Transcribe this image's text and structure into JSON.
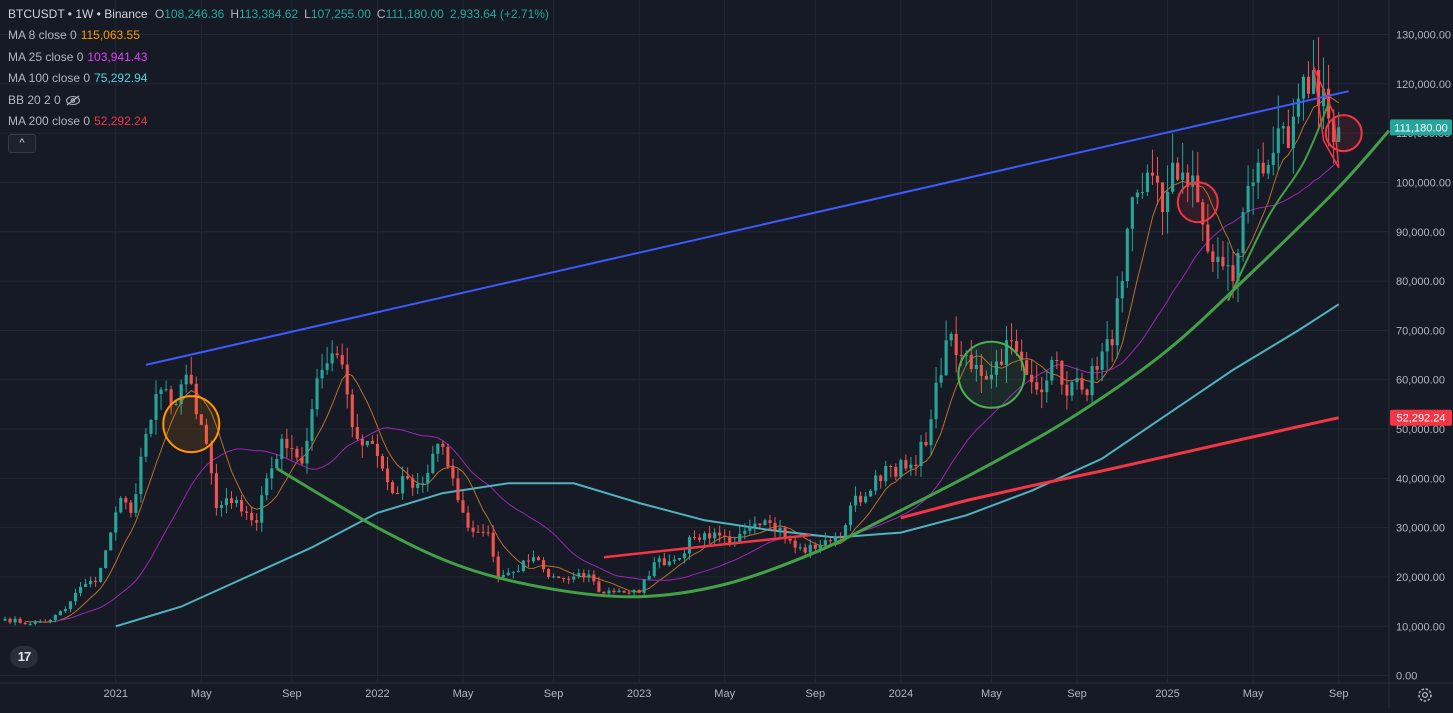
{
  "header": {
    "symbol_line": "BTCUSDT • 1W • Binance",
    "ohlc": [
      {
        "k": "O",
        "v": "108,246.36"
      },
      {
        "k": "H",
        "v": "113,384.62"
      },
      {
        "k": "L",
        "v": "107,255.00"
      },
      {
        "k": "C",
        "v": "111,180.00"
      },
      {
        "k": "",
        "v": "2,933.64 (+2.71%)"
      }
    ]
  },
  "indicators": [
    {
      "label": "MA 8 close 0",
      "value": "115,063.55",
      "color": "#ff9800"
    },
    {
      "label": "MA 25 close 0",
      "value": "103,941.43",
      "color": "#e040fb"
    },
    {
      "label": "MA 100 close 0",
      "value": "75,292.94",
      "color": "#5ad1e0"
    },
    {
      "label": "BB 20 2 0",
      "value": "",
      "color": "#b2b5be"
    },
    {
      "label": "MA 200 close 0",
      "value": "52,292.24",
      "color": "#f23645"
    }
  ],
  "collapse_label": "^",
  "logo_text": "17",
  "colors": {
    "up": "#26a69a",
    "down": "#ef5350",
    "ma8": "#b8702a",
    "ma25": "#9c27b0",
    "ma100": "#4fb3bf",
    "ma200": "#f23645",
    "trend_blue": "#3d5afe",
    "curve_green": "#43a047",
    "orange_circle": "#ff9800",
    "red_circle": "#f23645",
    "green_circle": "#4caf50"
  },
  "chart_data": {
    "type": "candlestick",
    "ylim": [
      -1500,
      137000
    ],
    "xlim": [
      "2020-07-27",
      "2025-11-10"
    ],
    "y_ticks": [
      "0.00",
      "10,000.00",
      "20,000.00",
      "30,000.00",
      "40,000.00",
      "50,000.00",
      "60,000.00",
      "70,000.00",
      "80,000.00",
      "90,000.00",
      "100,000.00",
      "110,000.00",
      "120,000.00",
      "130,000.00"
    ],
    "y_tick_values": [
      0,
      10000,
      20000,
      30000,
      40000,
      50000,
      60000,
      70000,
      80000,
      90000,
      100000,
      110000,
      120000,
      130000
    ],
    "x_ticks": [
      {
        "label": "2021",
        "date": "2021-01-04"
      },
      {
        "label": "May",
        "date": "2021-05-03"
      },
      {
        "label": "Sep",
        "date": "2021-09-06"
      },
      {
        "label": "2022",
        "date": "2022-01-03"
      },
      {
        "label": "May",
        "date": "2022-05-02"
      },
      {
        "label": "Sep",
        "date": "2022-09-05"
      },
      {
        "label": "2023",
        "date": "2023-01-02"
      },
      {
        "label": "May",
        "date": "2023-05-01"
      },
      {
        "label": "Sep",
        "date": "2023-09-04"
      },
      {
        "label": "2024",
        "date": "2024-01-01"
      },
      {
        "label": "May",
        "date": "2024-05-06"
      },
      {
        "label": "Sep",
        "date": "2024-09-02"
      },
      {
        "label": "2025",
        "date": "2025-01-06"
      },
      {
        "label": "May",
        "date": "2025-05-05"
      },
      {
        "label": "Sep",
        "date": "2025-09-01"
      }
    ],
    "price_labels": [
      {
        "text": "111,180.00",
        "value": 111180,
        "color": "#26a69a"
      },
      {
        "text": "52,292.24",
        "value": 52292.24,
        "color": "#f23645"
      }
    ],
    "closes": [
      {
        "d": "2020-08-03",
        "v": 11500
      },
      {
        "d": "2020-09-07",
        "v": 10500
      },
      {
        "d": "2020-10-05",
        "v": 11300
      },
      {
        "d": "2020-10-26",
        "v": 13500
      },
      {
        "d": "2020-11-16",
        "v": 18000
      },
      {
        "d": "2020-12-07",
        "v": 19000
      },
      {
        "d": "2020-12-28",
        "v": 29000
      },
      {
        "d": "2021-01-11",
        "v": 36000
      },
      {
        "d": "2021-01-25",
        "v": 33000
      },
      {
        "d": "2021-02-15",
        "v": 49000
      },
      {
        "d": "2021-03-08",
        "v": 58000
      },
      {
        "d": "2021-03-22",
        "v": 55000
      },
      {
        "d": "2021-04-12",
        "v": 61000
      },
      {
        "d": "2021-04-26",
        "v": 53000
      },
      {
        "d": "2021-05-10",
        "v": 47000
      },
      {
        "d": "2021-05-24",
        "v": 34000
      },
      {
        "d": "2021-06-14",
        "v": 35000
      },
      {
        "d": "2021-07-05",
        "v": 33000
      },
      {
        "d": "2021-07-19",
        "v": 31000
      },
      {
        "d": "2021-08-02",
        "v": 40000
      },
      {
        "d": "2021-08-23",
        "v": 48000
      },
      {
        "d": "2021-09-06",
        "v": 46000
      },
      {
        "d": "2021-09-20",
        "v": 43000
      },
      {
        "d": "2021-10-04",
        "v": 54000
      },
      {
        "d": "2021-10-18",
        "v": 62000
      },
      {
        "d": "2021-11-08",
        "v": 65000
      },
      {
        "d": "2021-11-22",
        "v": 57000
      },
      {
        "d": "2021-12-06",
        "v": 48000
      },
      {
        "d": "2021-12-27",
        "v": 47000
      },
      {
        "d": "2022-01-10",
        "v": 42000
      },
      {
        "d": "2022-01-24",
        "v": 37000
      },
      {
        "d": "2022-02-14",
        "v": 40000
      },
      {
        "d": "2022-03-07",
        "v": 39000
      },
      {
        "d": "2022-03-28",
        "v": 47000
      },
      {
        "d": "2022-04-18",
        "v": 40000
      },
      {
        "d": "2022-05-09",
        "v": 30000
      },
      {
        "d": "2022-06-06",
        "v": 29000
      },
      {
        "d": "2022-06-20",
        "v": 20000
      },
      {
        "d": "2022-07-11",
        "v": 21000
      },
      {
        "d": "2022-08-08",
        "v": 24000
      },
      {
        "d": "2022-08-29",
        "v": 20000
      },
      {
        "d": "2022-09-26",
        "v": 19500
      },
      {
        "d": "2022-10-24",
        "v": 20500
      },
      {
        "d": "2022-11-07",
        "v": 17000
      },
      {
        "d": "2022-12-05",
        "v": 17200
      },
      {
        "d": "2023-01-02",
        "v": 16800
      },
      {
        "d": "2023-01-23",
        "v": 23000
      },
      {
        "d": "2023-02-20",
        "v": 23500
      },
      {
        "d": "2023-03-20",
        "v": 28000
      },
      {
        "d": "2023-04-17",
        "v": 29000
      },
      {
        "d": "2023-05-15",
        "v": 27000
      },
      {
        "d": "2023-06-19",
        "v": 30500
      },
      {
        "d": "2023-07-17",
        "v": 30000
      },
      {
        "d": "2023-08-14",
        "v": 26000
      },
      {
        "d": "2023-09-11",
        "v": 26500
      },
      {
        "d": "2023-10-09",
        "v": 28000
      },
      {
        "d": "2023-10-23",
        "v": 34500
      },
      {
        "d": "2023-11-20",
        "v": 37500
      },
      {
        "d": "2023-12-11",
        "v": 42500
      },
      {
        "d": "2024-01-08",
        "v": 42000
      },
      {
        "d": "2024-01-22",
        "v": 42500
      },
      {
        "d": "2024-02-12",
        "v": 52000
      },
      {
        "d": "2024-03-04",
        "v": 68000
      },
      {
        "d": "2024-03-18",
        "v": 65000
      },
      {
        "d": "2024-04-15",
        "v": 63000
      },
      {
        "d": "2024-05-06",
        "v": 61000
      },
      {
        "d": "2024-05-27",
        "v": 68000
      },
      {
        "d": "2024-06-24",
        "v": 61000
      },
      {
        "d": "2024-07-08",
        "v": 58000
      },
      {
        "d": "2024-07-29",
        "v": 64000
      },
      {
        "d": "2024-08-12",
        "v": 59000
      },
      {
        "d": "2024-09-09",
        "v": 58000
      },
      {
        "d": "2024-09-30",
        "v": 62000
      },
      {
        "d": "2024-10-21",
        "v": 67000
      },
      {
        "d": "2024-11-04",
        "v": 80000
      },
      {
        "d": "2024-11-18",
        "v": 97000
      },
      {
        "d": "2024-12-09",
        "v": 102000
      },
      {
        "d": "2024-12-30",
        "v": 94000
      },
      {
        "d": "2025-01-13",
        "v": 104000
      },
      {
        "d": "2025-01-27",
        "v": 102000
      },
      {
        "d": "2025-02-17",
        "v": 96000
      },
      {
        "d": "2025-03-03",
        "v": 86000
      },
      {
        "d": "2025-03-24",
        "v": 83000
      },
      {
        "d": "2025-04-07",
        "v": 80000
      },
      {
        "d": "2025-04-21",
        "v": 94000
      },
      {
        "d": "2025-05-12",
        "v": 104000
      },
      {
        "d": "2025-06-02",
        "v": 106000
      },
      {
        "d": "2025-06-23",
        "v": 107000
      },
      {
        "d": "2025-07-07",
        "v": 117000
      },
      {
        "d": "2025-07-21",
        "v": 118000
      },
      {
        "d": "2025-08-11",
        "v": 119000
      },
      {
        "d": "2025-08-18",
        "v": 113000
      },
      {
        "d": "2025-08-25",
        "v": 108200
      },
      {
        "d": "2025-09-01",
        "v": 111180
      }
    ],
    "ma100": [
      {
        "d": "2021-01-04",
        "v": 10000
      },
      {
        "d": "2021-04-05",
        "v": 14000
      },
      {
        "d": "2021-07-05",
        "v": 20000
      },
      {
        "d": "2021-10-04",
        "v": 26000
      },
      {
        "d": "2022-01-03",
        "v": 33000
      },
      {
        "d": "2022-04-04",
        "v": 37000
      },
      {
        "d": "2022-07-04",
        "v": 39000
      },
      {
        "d": "2022-10-03",
        "v": 39000
      },
      {
        "d": "2023-01-02",
        "v": 35000
      },
      {
        "d": "2023-04-03",
        "v": 31500
      },
      {
        "d": "2023-07-03",
        "v": 29500
      },
      {
        "d": "2023-10-02",
        "v": 28000
      },
      {
        "d": "2024-01-01",
        "v": 29000
      },
      {
        "d": "2024-04-01",
        "v": 32500
      },
      {
        "d": "2024-07-01",
        "v": 37500
      },
      {
        "d": "2024-10-07",
        "v": 44000
      },
      {
        "d": "2025-01-06",
        "v": 53000
      },
      {
        "d": "2025-04-07",
        "v": 62000
      },
      {
        "d": "2025-07-07",
        "v": 70000
      },
      {
        "d": "2025-09-01",
        "v": 75293
      }
    ],
    "ma200": [
      {
        "d": "2024-01-01",
        "v": 32000
      },
      {
        "d": "2024-04-01",
        "v": 35500
      },
      {
        "d": "2024-07-01",
        "v": 38500
      },
      {
        "d": "2024-10-07",
        "v": 41500
      },
      {
        "d": "2025-01-06",
        "v": 44500
      },
      {
        "d": "2025-04-07",
        "v": 47500
      },
      {
        "d": "2025-07-07",
        "v": 50500
      },
      {
        "d": "2025-09-01",
        "v": 52292
      }
    ],
    "annotations": {
      "blue_line": [
        {
          "d": "2021-02-15",
          "v": 63000
        },
        {
          "d": "2025-09-15",
          "v": 118500
        }
      ],
      "green_arc": [
        {
          "d": "2021-08-16",
          "v": 42000
        },
        {
          "d": "2022-01-03",
          "v": 30000
        },
        {
          "d": "2022-05-02",
          "v": 22000
        },
        {
          "d": "2022-09-05",
          "v": 17500
        },
        {
          "d": "2023-01-02",
          "v": 16000
        },
        {
          "d": "2023-05-01",
          "v": 18500
        },
        {
          "d": "2023-09-04",
          "v": 25000
        },
        {
          "d": "2024-01-01",
          "v": 33500
        },
        {
          "d": "2024-05-06",
          "v": 43000
        },
        {
          "d": "2024-09-02",
          "v": 53000
        },
        {
          "d": "2025-01-06",
          "v": 66000
        },
        {
          "d": "2025-05-05",
          "v": 82000
        },
        {
          "d": "2025-09-01",
          "v": 99000
        },
        {
          "d": "2025-11-10",
          "v": 110500
        }
      ],
      "green_inner": [
        {
          "d": "2025-03-31",
          "v": 76000
        },
        {
          "d": "2025-05-26",
          "v": 93000
        },
        {
          "d": "2025-07-14",
          "v": 104000
        },
        {
          "d": "2025-08-18",
          "v": 116000
        }
      ],
      "red_line": [
        {
          "d": "2022-11-14",
          "v": 24000
        },
        {
          "d": "2023-08-28",
          "v": 28500
        }
      ],
      "red_triangle": [
        {
          "d": "2025-07-28",
          "v": 123500
        },
        {
          "d": "2025-08-25",
          "v": 114000
        },
        {
          "d": "2025-09-01",
          "v": 103000
        },
        {
          "d": "2025-08-11",
          "v": 108500
        },
        {
          "d": "2025-07-28",
          "v": 123500
        }
      ],
      "circles": [
        {
          "d": "2021-04-19",
          "v": 51000,
          "color": "#ff9800"
        },
        {
          "d": "2024-05-06",
          "v": 61000,
          "color": "#4caf50"
        },
        {
          "d": "2025-02-17",
          "v": 96000,
          "color": "#f23645"
        },
        {
          "d": "2025-09-08",
          "v": 110000,
          "color": "#f23645"
        }
      ]
    }
  }
}
